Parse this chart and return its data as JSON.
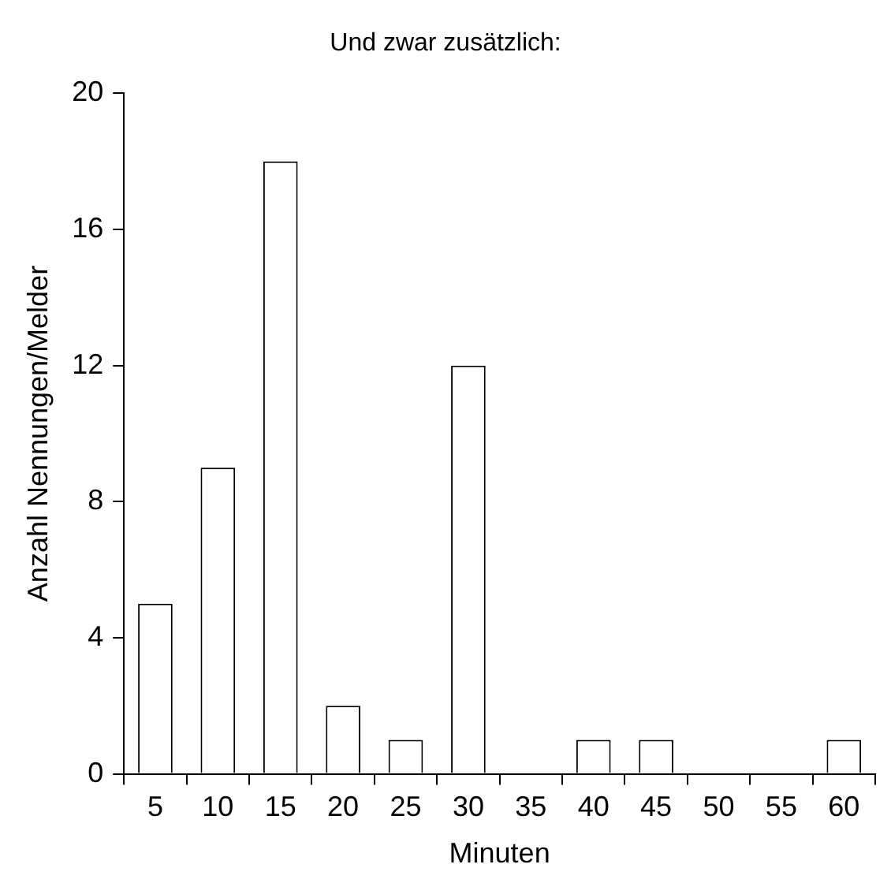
{
  "chart_data": {
    "type": "bar",
    "title": "Und zwar zusätzlich:",
    "xlabel": "Minuten",
    "ylabel": "Anzahl Nennungen/Melder",
    "categories": [
      "5",
      "10",
      "15",
      "20",
      "25",
      "30",
      "35",
      "40",
      "45",
      "50",
      "55",
      "60"
    ],
    "values": [
      5,
      9,
      18,
      2,
      1,
      12,
      0,
      1,
      1,
      0,
      0,
      1
    ],
    "color": "#ffffff",
    "ylim": [
      0,
      20
    ],
    "yticks": [
      0,
      4,
      8,
      12,
      16,
      20
    ],
    "grid": false,
    "legend": false
  }
}
